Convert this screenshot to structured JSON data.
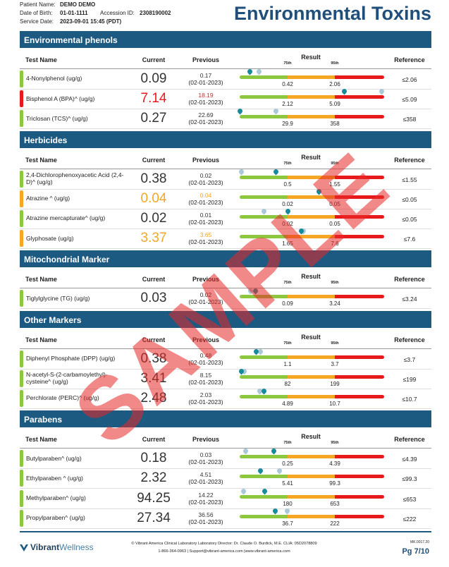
{
  "header": {
    "patient_name_label": "Patient Name:",
    "patient_name": "DEMO DEMO",
    "dob_label": "Date of Birth:",
    "dob": "01-01-1111",
    "accession_label": "Accession ID:",
    "accession": "2308190002",
    "service_date_label": "Service Date:",
    "service_date": "2023-09-01 15:45 (PDT)",
    "title": "Environmental Toxins"
  },
  "columns": {
    "test_name": "Test Name",
    "current": "Current",
    "previous": "Previous",
    "result": "Result",
    "p75": "75th",
    "p95": "95th",
    "reference": "Reference"
  },
  "sections": [
    {
      "title": "Environmental phenols",
      "rows": [
        {
          "name": "4-Nonylphenol (ug/g)",
          "current": 0.09,
          "previous": 0.17,
          "previous_date": "(02-01-2023)",
          "p75": 0.42,
          "p95": 2.06,
          "reference": "≤2.06",
          "flag_color": "#8dc63f",
          "current_color": "#333333",
          "previous_color": "#333333"
        },
        {
          "name": "Bisphenol A (BPA)^ (ug/g)",
          "current": 7.14,
          "previous": 18.19,
          "previous_date": "(02-01-2023)",
          "p75": 2.12,
          "p95": 5.09,
          "reference": "≤5.09",
          "flag_color": "#e8191b",
          "current_color": "#e8191b",
          "previous_color": "#e8191b"
        },
        {
          "name": "Triclosan (TCS)^ (ug/g)",
          "current": 0.27,
          "previous": 22.69,
          "previous_date": "(02-01-2023)",
          "p75": 29.9,
          "p95": 358,
          "reference": "≤358",
          "flag_color": "#8dc63f",
          "current_color": "#333333",
          "previous_color": "#333333"
        }
      ]
    },
    {
      "title": "Herbicides",
      "rows": [
        {
          "name": "2,4-Dichlorophenoxyacetic Acid (2,4-D)^ (ug/g)",
          "current": 0.38,
          "previous": 0.02,
          "previous_date": "(02-01-2023)",
          "p75": 0.5,
          "p95": 1.55,
          "reference": "≤1.55",
          "flag_color": "#8dc63f",
          "current_color": "#333333",
          "previous_color": "#333333"
        },
        {
          "name": "Atrazine ^ (ug/g)",
          "current": 0.04,
          "previous": 0.04,
          "previous_date": "(02-01-2023)",
          "p75": 0.02,
          "p95": 0.05,
          "reference": "≤0.05",
          "flag_color": "#f5a623",
          "current_color": "#f5a623",
          "previous_color": "#f5a623"
        },
        {
          "name": "Atrazine mercapturate^ (ug/g)",
          "current": 0.02,
          "previous": 0.01,
          "previous_date": "(02-01-2023)",
          "p75": 0.02,
          "p95": 0.05,
          "reference": "≤0.05",
          "flag_color": "#8dc63f",
          "current_color": "#333333",
          "previous_color": "#333333"
        },
        {
          "name": "Glyphosate (ug/g)",
          "current": 3.37,
          "previous": 3.65,
          "previous_date": "(02-01-2023)",
          "p75": 1.65,
          "p95": 7.6,
          "reference": "≤7.6",
          "flag_color": "#f5a623",
          "current_color": "#f5a623",
          "previous_color": "#f5a623"
        }
      ]
    },
    {
      "title": "Mitochondrial Marker",
      "rows": [
        {
          "name": "Tiglylglycine (TG) (ug/g)",
          "current": 0.03,
          "previous": 0.02,
          "previous_date": "(02-01-2023)",
          "p75": 0.09,
          "p95": 3.24,
          "reference": "≤3.24",
          "flag_color": "#8dc63f",
          "current_color": "#333333",
          "previous_color": "#333333"
        }
      ]
    },
    {
      "title": "Other Markers",
      "rows": [
        {
          "name": "Diphenyl Phosphate (DPP) (ug/g)",
          "current": 0.38,
          "previous": 0.48,
          "previous_date": "(02-01-2023)",
          "p75": 1.1,
          "p95": 3.7,
          "reference": "≤3.7",
          "flag_color": "#8dc63f",
          "current_color": "#333333",
          "previous_color": "#333333"
        },
        {
          "name": "N-acetyl-S-(2-carbamoylethyl)-cysteine^ (ug/g)",
          "current": 3.41,
          "previous": 8.15,
          "previous_date": "(02-01-2023)",
          "p75": 82,
          "p95": 199,
          "reference": "≤199",
          "flag_color": "#8dc63f",
          "current_color": "#333333",
          "previous_color": "#333333"
        },
        {
          "name": "Perchlorate (PERC)^ (ug/g)",
          "current": 2.48,
          "previous": 2.03,
          "previous_date": "(02-01-2023)",
          "p75": 4.89,
          "p95": 10.7,
          "reference": "≤10.7",
          "flag_color": "#8dc63f",
          "current_color": "#333333",
          "previous_color": "#333333"
        }
      ]
    },
    {
      "title": "Parabens",
      "rows": [
        {
          "name": "Butylparaben^ (ug/g)",
          "current": 0.18,
          "previous": 0.03,
          "previous_date": "(02-01-2023)",
          "p75": 0.25,
          "p95": 4.39,
          "reference": "≤4.39",
          "flag_color": "#8dc63f",
          "current_color": "#333333",
          "previous_color": "#333333"
        },
        {
          "name": "Ethylparaben ^ (ug/g)",
          "current": 2.32,
          "previous": 4.51,
          "previous_date": "(02-01-2023)",
          "p75": 5.41,
          "p95": 99.3,
          "reference": "≤99.3",
          "flag_color": "#8dc63f",
          "current_color": "#333333",
          "previous_color": "#333333"
        },
        {
          "name": "Methylparaben^ (ug/g)",
          "current": 94.25,
          "previous": 14.22,
          "previous_date": "(02-01-2023)",
          "p75": 180,
          "p95": 653,
          "reference": "≤653",
          "flag_color": "#8dc63f",
          "current_color": "#333333",
          "previous_color": "#333333"
        },
        {
          "name": "Propylparaben^ (ug/g)",
          "current": 27.34,
          "previous": 36.56,
          "previous_date": "(02-01-2023)",
          "p75": 36.7,
          "p95": 222,
          "reference": "≤222",
          "flag_color": "#8dc63f",
          "current_color": "#333333",
          "previous_color": "#333333"
        }
      ]
    }
  ],
  "watermark": "SAMPLE",
  "footer": {
    "logo_vibrant": "Vibrant",
    "logo_wellness": "Wellness",
    "line1": "© Vibrant America Clinical Laboratory Laboratory Director: Dr. Claude O. Burdick, M.E. CLIA: 05D2078809",
    "line2": "1-866-364-0963 | Support@vibrant-america.com |www.vibrant-america.com",
    "code": "MK.0017.20",
    "page": "Pg 7/10"
  }
}
